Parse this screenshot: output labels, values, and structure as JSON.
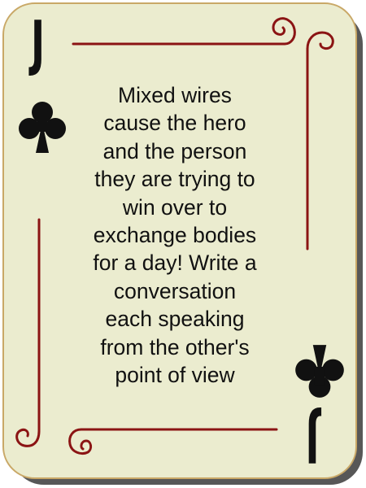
{
  "card": {
    "rank": "J",
    "suit": "clubs",
    "suit_icon": "club-icon",
    "colors": {
      "face": "#ebeccf",
      "ornament": "#8b1414",
      "ink": "#111111",
      "shadow": "#3a3a3a"
    },
    "prompt_lines": [
      "Mixed wires",
      "cause the hero",
      "and the person",
      "they are trying to",
      "win over to",
      "exchange bodies",
      "for a day! Write a",
      "conversation",
      "each speaking",
      "from the other's",
      "point of view"
    ]
  }
}
